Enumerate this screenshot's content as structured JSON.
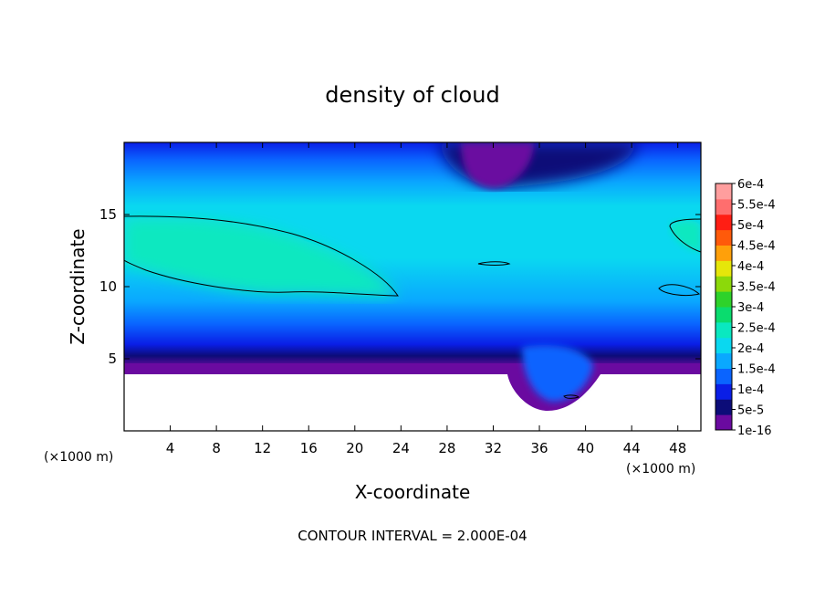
{
  "chart_data": {
    "type": "heatmap",
    "title": "density of cloud",
    "xlabel": "X-coordinate",
    "ylabel": "Z-coordinate",
    "x_unit_left": "(×1000 m)",
    "x_unit_right": "(×1000 m)",
    "footer": "CONTOUR INTERVAL = 2.000E-04",
    "xlim": [
      0,
      50
    ],
    "ylim": [
      0,
      20
    ],
    "x_ticks": [
      "4",
      "8",
      "12",
      "16",
      "20",
      "24",
      "28",
      "32",
      "36",
      "40",
      "44",
      "48"
    ],
    "y_ticks": [
      "5",
      "10",
      "15"
    ],
    "colorbar": {
      "labels": [
        "1e-16",
        "5e-5",
        "1e-4",
        "1.5e-4",
        "2e-4",
        "2.5e-4",
        "3e-4",
        "3.5e-4",
        "4e-4",
        "4.5e-4",
        "5e-4",
        "5.5e-4",
        "6e-4"
      ],
      "colors": [
        "#6a0aa0",
        "#0c0c78",
        "#0a1ee6",
        "#0a64ff",
        "#0aa8ff",
        "#0ad8f0",
        "#0ae8c0",
        "#0adc6e",
        "#2ed22a",
        "#8cd90a",
        "#e6e60a",
        "#ffa00a",
        "#ff5a0a",
        "#ff1e14",
        "#ff6e6e",
        "#ff9e9e"
      ]
    },
    "contour_interval": 0.0002
  }
}
